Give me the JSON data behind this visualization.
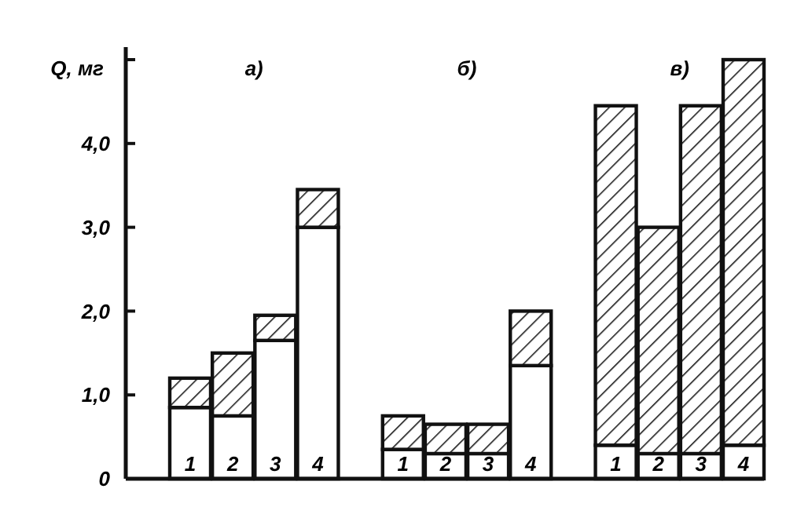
{
  "chart_data": {
    "type": "bar",
    "stacked": true,
    "ylabel": "Q, мг",
    "categories": [
      "1",
      "2",
      "3",
      "4",
      null,
      "1",
      "2",
      "3",
      "4",
      null,
      "1",
      "2",
      "3",
      "4"
    ],
    "series": [
      {
        "color": "#ffffff",
        "values": [
          0.85,
          0.75,
          1.65,
          3.0,
          null,
          0.35,
          0.3,
          0.3,
          1.35,
          null,
          0.4,
          0.3,
          0.3,
          0.4
        ]
      },
      {
        "color": "#1a1a1a",
        "values": [
          0.35,
          0.75,
          0.3,
          0.45,
          null,
          0.4,
          0.35,
          0.35,
          0.65,
          null,
          4.05,
          2.7,
          4.15,
          4.6
        ]
      }
    ],
    "ylim": [
      0,
      5.15
    ],
    "yticks": [
      0,
      {
        "value": 1,
        "label": "1,0"
      },
      {
        "value": 2,
        "label": "2,0"
      },
      {
        "value": 3,
        "label": "3,0"
      },
      {
        "value": 4,
        "label": "4,0"
      },
      {
        "value": 5,
        "label": null
      }
    ],
    "annotations": [
      "а)",
      "б)",
      "в)"
    ],
    "grid": false
  }
}
